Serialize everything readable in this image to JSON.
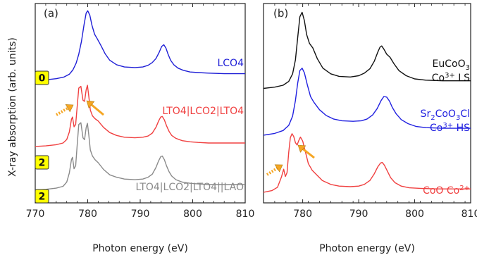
{
  "figure": {
    "ylabel": "X-ray absorption (arb. units)"
  },
  "chart_data": [
    {
      "type": "line",
      "panel_label": "(a)",
      "xlabel": "Photon energy (eV)",
      "ylabel": "X-ray absorption (arb. units)",
      "xlim": [
        770,
        810
      ],
      "xticks": [
        770,
        780,
        790,
        800,
        810
      ],
      "grid": false,
      "y_ticklabels": false,
      "badges": [
        {
          "label": "0",
          "series_index": 0
        },
        {
          "label": "2",
          "series_index": 1
        },
        {
          "label": "2",
          "series_index": 2
        }
      ],
      "arrows": [
        {
          "style": "dotted",
          "color": "#f5a623"
        },
        {
          "style": "solid",
          "color": "#f5a623"
        }
      ],
      "series": [
        {
          "name": "LCO4",
          "color": "#1f1fd6",
          "baseline": 0,
          "x": [
            770.0,
            772.0,
            774.0,
            775.5,
            776.5,
            777.2,
            777.8,
            778.3,
            778.8,
            779.3,
            779.7,
            780.0,
            780.4,
            780.8,
            781.3,
            781.8,
            782.5,
            783.3,
            784.2,
            785.5,
            787.0,
            789.0,
            790.5,
            791.5,
            792.3,
            793.0,
            793.6,
            794.1,
            794.5,
            794.9,
            795.3,
            795.8,
            796.4,
            797.2,
            798.2,
            799.5,
            801.0,
            803.0,
            806.0,
            810.0
          ],
          "y": [
            0.5,
            0.6,
            0.8,
            1.1,
            1.6,
            2.4,
            3.6,
            5.2,
            7.5,
            10.5,
            12.6,
            13.0,
            12.2,
            10.4,
            8.8,
            8.0,
            6.8,
            5.3,
            4.1,
            3.3,
            2.9,
            2.8,
            2.9,
            3.2,
            3.7,
            4.4,
            5.5,
            6.6,
            6.9,
            6.3,
            5.2,
            4.1,
            3.3,
            2.7,
            2.3,
            2.0,
            1.9,
            1.8,
            1.7,
            1.7
          ]
        },
        {
          "name": "LTO4|LCO2|LTO4",
          "color": "#f04040",
          "baseline": 2,
          "x": [
            770.0,
            772.0,
            774.0,
            775.3,
            776.0,
            776.5,
            776.9,
            777.1,
            777.4,
            777.7,
            778.0,
            778.3,
            778.7,
            779.1,
            779.4,
            779.7,
            779.95,
            780.2,
            780.5,
            780.9,
            781.4,
            782.0,
            783.0,
            784.2,
            785.5,
            787.0,
            789.0,
            790.5,
            791.5,
            792.3,
            793.0,
            793.5,
            793.9,
            794.2,
            794.6,
            795.0,
            795.5,
            796.0,
            796.8,
            798.0,
            799.5,
            801.0,
            803.0,
            806.0,
            810.0
          ],
          "y": [
            0.5,
            0.6,
            0.8,
            1.1,
            1.7,
            3.0,
            5.2,
            5.6,
            3.9,
            4.3,
            7.5,
            10.6,
            10.9,
            8.5,
            8.3,
            10.3,
            11.1,
            9.2,
            6.8,
            5.8,
            5.3,
            4.9,
            3.8,
            2.9,
            2.4,
            2.1,
            2.0,
            2.1,
            2.3,
            2.8,
            3.8,
            4.9,
            5.6,
            5.7,
            5.1,
            4.1,
            3.1,
            2.4,
            1.9,
            1.5,
            1.3,
            1.2,
            1.1,
            1.1,
            1.1
          ]
        },
        {
          "name": "LTO4|LCO2|LTO4||LAO",
          "color": "#8a8a8a",
          "baseline": 2,
          "x": [
            770.0,
            772.0,
            774.0,
            775.3,
            776.0,
            776.5,
            776.9,
            777.1,
            777.4,
            777.7,
            778.0,
            778.3,
            778.7,
            779.1,
            779.4,
            779.7,
            779.95,
            780.2,
            780.5,
            780.9,
            781.4,
            782.0,
            783.0,
            784.2,
            785.5,
            787.0,
            789.0,
            790.5,
            791.5,
            792.3,
            793.0,
            793.5,
            793.9,
            794.2,
            794.6,
            795.0,
            795.5,
            796.0,
            796.8,
            798.0,
            799.5,
            801.0,
            803.0,
            806.0,
            810.0
          ],
          "y": [
            0.5,
            0.6,
            0.8,
            1.1,
            1.8,
            3.3,
            5.5,
            5.9,
            4.0,
            4.5,
            8.0,
            11.3,
            11.6,
            9.1,
            8.8,
            10.8,
            11.5,
            9.6,
            7.1,
            6.1,
            5.5,
            5.0,
            3.9,
            3.0,
            2.6,
            2.3,
            2.2,
            2.3,
            2.6,
            3.1,
            4.2,
            5.3,
            6.0,
            6.1,
            5.5,
            4.5,
            3.5,
            2.8,
            2.2,
            1.8,
            1.6,
            1.5,
            1.4,
            1.4,
            1.4
          ]
        }
      ]
    },
    {
      "type": "line",
      "panel_label": "(b)",
      "xlabel": "Photon energy (eV)",
      "xlim": [
        773,
        810
      ],
      "xticks": [
        780,
        790,
        800,
        810
      ],
      "grid": false,
      "y_ticklabels": false,
      "arrows": [
        {
          "style": "dotted",
          "color": "#f5a623"
        },
        {
          "style": "solid",
          "color": "#f5a623"
        }
      ],
      "series": [
        {
          "name": "EuCoO3",
          "label_lines": [
            "EuCoO3",
            "Co3+ LS"
          ],
          "color": "#111111",
          "x": [
            773.0,
            775.0,
            776.5,
            777.5,
            778.2,
            778.7,
            779.1,
            779.5,
            779.9,
            780.3,
            780.7,
            781.2,
            781.8,
            782.6,
            783.6,
            785.0,
            786.5,
            788.5,
            790.0,
            791.0,
            792.0,
            792.8,
            793.4,
            793.8,
            794.1,
            794.5,
            795.0,
            795.6,
            796.3,
            797.2,
            798.5,
            800.0,
            802.0,
            805.0,
            810.0
          ],
          "y": [
            0.5,
            0.7,
            1.0,
            1.6,
            2.8,
            5.0,
            8.5,
            11.8,
            12.5,
            11.2,
            9.0,
            7.6,
            6.9,
            5.2,
            3.7,
            2.8,
            2.4,
            2.3,
            2.5,
            2.9,
            3.6,
            4.8,
            6.2,
            7.0,
            7.2,
            6.7,
            5.9,
            5.4,
            4.4,
            3.3,
            2.5,
            2.0,
            1.8,
            1.7,
            1.7
          ]
        },
        {
          "name": "Sr2CoO3Cl",
          "label_lines": [
            "Sr2CoO3Cl",
            "Co3+ HS"
          ],
          "color": "#2020e0",
          "x": [
            773.0,
            775.0,
            776.5,
            777.5,
            778.2,
            778.7,
            779.1,
            779.5,
            779.9,
            780.3,
            780.8,
            781.4,
            782.0,
            783.0,
            784.2,
            785.5,
            787.0,
            789.0,
            790.5,
            791.5,
            792.5,
            793.3,
            794.0,
            794.5,
            795.0,
            795.5,
            796.0,
            796.7,
            797.6,
            798.8,
            800.3,
            802.0,
            805.0,
            810.0
          ],
          "y": [
            0.5,
            0.8,
            1.3,
            2.2,
            3.8,
            6.5,
            9.5,
            11.7,
            12.1,
            11.3,
            9.3,
            7.2,
            6.2,
            4.9,
            3.9,
            3.3,
            3.0,
            2.9,
            3.0,
            3.3,
            4.0,
            5.1,
            6.5,
            7.2,
            7.1,
            6.4,
            5.3,
            4.2,
            3.2,
            2.5,
            2.0,
            1.8,
            1.7,
            1.7
          ]
        },
        {
          "name": "CoO Co2+",
          "label_lines": [
            "CoO  Co2+"
          ],
          "color": "#f04040",
          "x": [
            773.0,
            774.5,
            775.5,
            776.2,
            776.6,
            776.9,
            777.2,
            777.5,
            777.8,
            778.1,
            778.4,
            778.7,
            779.0,
            779.3,
            779.6,
            780.0,
            780.5,
            781.0,
            781.7,
            782.5,
            783.5,
            785.0,
            786.5,
            788.5,
            790.0,
            791.0,
            792.0,
            792.8,
            793.4,
            793.9,
            794.2,
            794.6,
            795.1,
            795.7,
            796.5,
            797.6,
            799.0,
            801.0,
            804.0,
            810.0
          ],
          "y": [
            0.5,
            0.8,
            1.4,
            3.2,
            4.6,
            3.3,
            4.0,
            7.6,
            10.2,
            10.9,
            10.4,
            9.3,
            8.9,
            9.7,
            10.3,
            9.6,
            7.6,
            5.6,
            4.4,
            3.6,
            2.6,
            1.9,
            1.6,
            1.5,
            1.6,
            1.9,
            2.6,
            3.8,
            5.0,
            5.7,
            5.8,
            5.3,
            4.3,
            3.1,
            2.2,
            1.6,
            1.3,
            1.2,
            1.1,
            1.1
          ]
        }
      ]
    }
  ]
}
